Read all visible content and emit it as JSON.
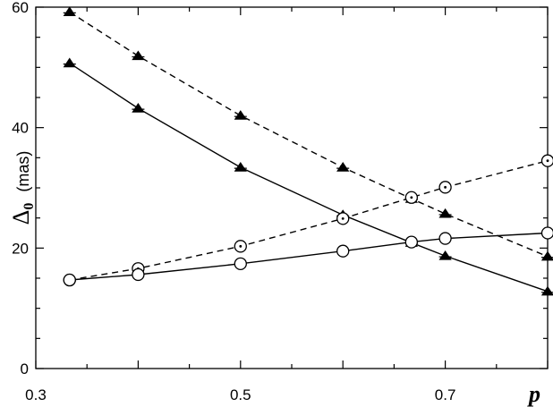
{
  "chart_data": {
    "type": "line",
    "title": "",
    "xlabel": "p",
    "ylabel_symbol": "Δ",
    "ylabel_subscript": "0",
    "ylabel_unit": "(mas)",
    "xlim": [
      0.3,
      0.8
    ],
    "ylim": [
      0,
      60
    ],
    "xticks": [
      0.3,
      0.5,
      0.7
    ],
    "xtick_labels": [
      "0.3",
      "0.5",
      "0.7"
    ],
    "yticks": [
      0,
      20,
      40,
      60
    ],
    "ytick_labels": [
      "0",
      "20",
      "40",
      "60"
    ],
    "grid": false,
    "series": [
      {
        "marker": "triangle",
        "line": "dashed",
        "x": [
          0.333,
          0.4,
          0.5,
          0.6,
          0.667,
          0.7,
          0.8
        ],
        "y": [
          59.2,
          51.9,
          42.0,
          33.4,
          28.2,
          25.7,
          18.6
        ]
      },
      {
        "marker": "triangle",
        "line": "solid",
        "x": [
          0.333,
          0.4,
          0.5,
          0.6,
          0.667,
          0.7,
          0.8
        ],
        "y": [
          50.7,
          43.2,
          33.4,
          25.5,
          20.9,
          18.7,
          12.8
        ]
      },
      {
        "marker": "circle-dot",
        "line": "dashed",
        "x": [
          0.333,
          0.4,
          0.5,
          0.6,
          0.667,
          0.7,
          0.8
        ],
        "y": [
          14.7,
          16.6,
          20.3,
          24.9,
          28.4,
          30.1,
          34.5
        ]
      },
      {
        "marker": "circle",
        "line": "solid",
        "x": [
          0.333,
          0.4,
          0.5,
          0.6,
          0.667,
          0.7,
          0.8
        ],
        "y": [
          14.7,
          15.6,
          17.4,
          19.5,
          21.0,
          21.6,
          22.5
        ]
      }
    ]
  }
}
